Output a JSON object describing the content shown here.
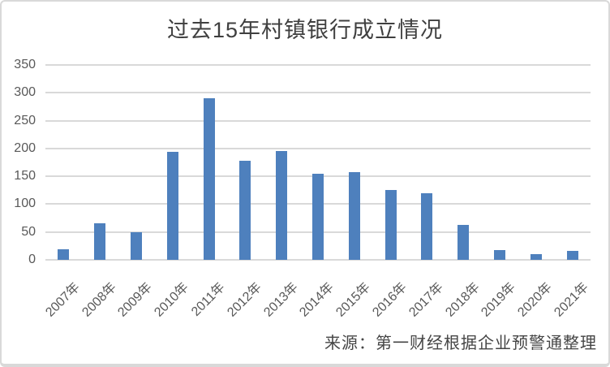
{
  "frame": {
    "source_note": "来源：第一财经根据企业预警通整理"
  },
  "colors": {
    "bar": "#4E80BD",
    "gridline": "#D9D9D9",
    "frame_border": "#D9D9D9",
    "title_text": "#3F3F3F",
    "axis_text": "#595959",
    "source_text": "#454545",
    "background": "#FFFFFF"
  },
  "chart_data": {
    "type": "bar",
    "title": "过去15年村镇银行成立情况",
    "categories": [
      "2007年",
      "2008年",
      "2009年",
      "2010年",
      "2011年",
      "2012年",
      "2013年",
      "2014年",
      "2015年",
      "2016年",
      "2017年",
      "2018年",
      "2019年",
      "2020年",
      "2021年"
    ],
    "values": [
      19,
      66,
      49,
      194,
      290,
      178,
      196,
      155,
      158,
      126,
      120,
      62,
      17,
      10,
      16
    ],
    "xlabel": "",
    "ylabel": "",
    "ylim": [
      0,
      350
    ],
    "ytick_step": 50,
    "yticks": [
      0,
      50,
      100,
      150,
      200,
      250,
      300,
      350
    ],
    "grid": true,
    "legend": false,
    "x_tick_rotation_deg": -45,
    "annotation": "来源：第一财经根据企业预警通整理"
  }
}
